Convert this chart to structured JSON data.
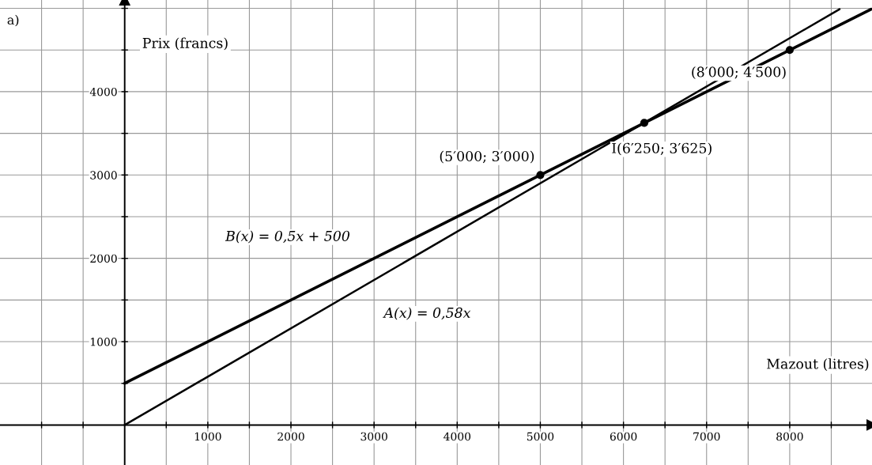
{
  "chart_data": {
    "type": "line",
    "xlabel": "Mazout (litres)",
    "ylabel": "Prix (francs)",
    "series": [
      {
        "name": "B(x) = 0,5x + 500",
        "color": "#000000",
        "x": [
          0,
          8980
        ],
        "values": [
          500,
          4990
        ]
      },
      {
        "name": "A(x) = 0,58x",
        "color": "#000000",
        "x": [
          0,
          8600
        ],
        "values": [
          0,
          4990
        ]
      },
      {
        "type": "scatter",
        "marker": "circle",
        "color": "#000000",
        "x": [
          5000,
          6250,
          8000
        ],
        "values": [
          3000,
          3625,
          4500
        ]
      }
    ],
    "annotations": [
      "a)",
      {
        "text": "(5′000; 3′000)",
        "x": 5000,
        "y": 3000
      },
      {
        "text": "I(6′250; 3′625)",
        "x": 6250,
        "y": 3625
      },
      {
        "text": "(8′000; 4′500)",
        "x": 8000,
        "y": 4500
      }
    ],
    "xlim": [
      -1500,
      8990
    ],
    "ylim": [
      -480,
      5100
    ],
    "xticks": [
      {
        "value": -1000,
        "label": null
      },
      {
        "value": -500,
        "label": null
      },
      {
        "value": 500,
        "label": null
      },
      1000,
      {
        "value": 1500,
        "label": null
      },
      2000,
      {
        "value": 2500,
        "label": null
      },
      3000,
      {
        "value": 3500,
        "label": null
      },
      4000,
      {
        "value": 4500,
        "label": null
      },
      5000,
      {
        "value": 5500,
        "label": null
      },
      6000,
      {
        "value": 6500,
        "label": null
      },
      7000,
      {
        "value": 7500,
        "label": null
      },
      8000,
      {
        "value": 8500,
        "label": null
      }
    ],
    "yticks": [
      {
        "value": 500,
        "label": null
      },
      1000,
      {
        "value": 1500,
        "label": null
      },
      2000,
      {
        "value": 2500,
        "label": null
      },
      3000,
      {
        "value": 3500,
        "label": null
      },
      4000,
      {
        "value": 4500,
        "label": null
      },
      {
        "value": 5000,
        "label": null
      }
    ],
    "grid": true,
    "line_style": "solid"
  }
}
